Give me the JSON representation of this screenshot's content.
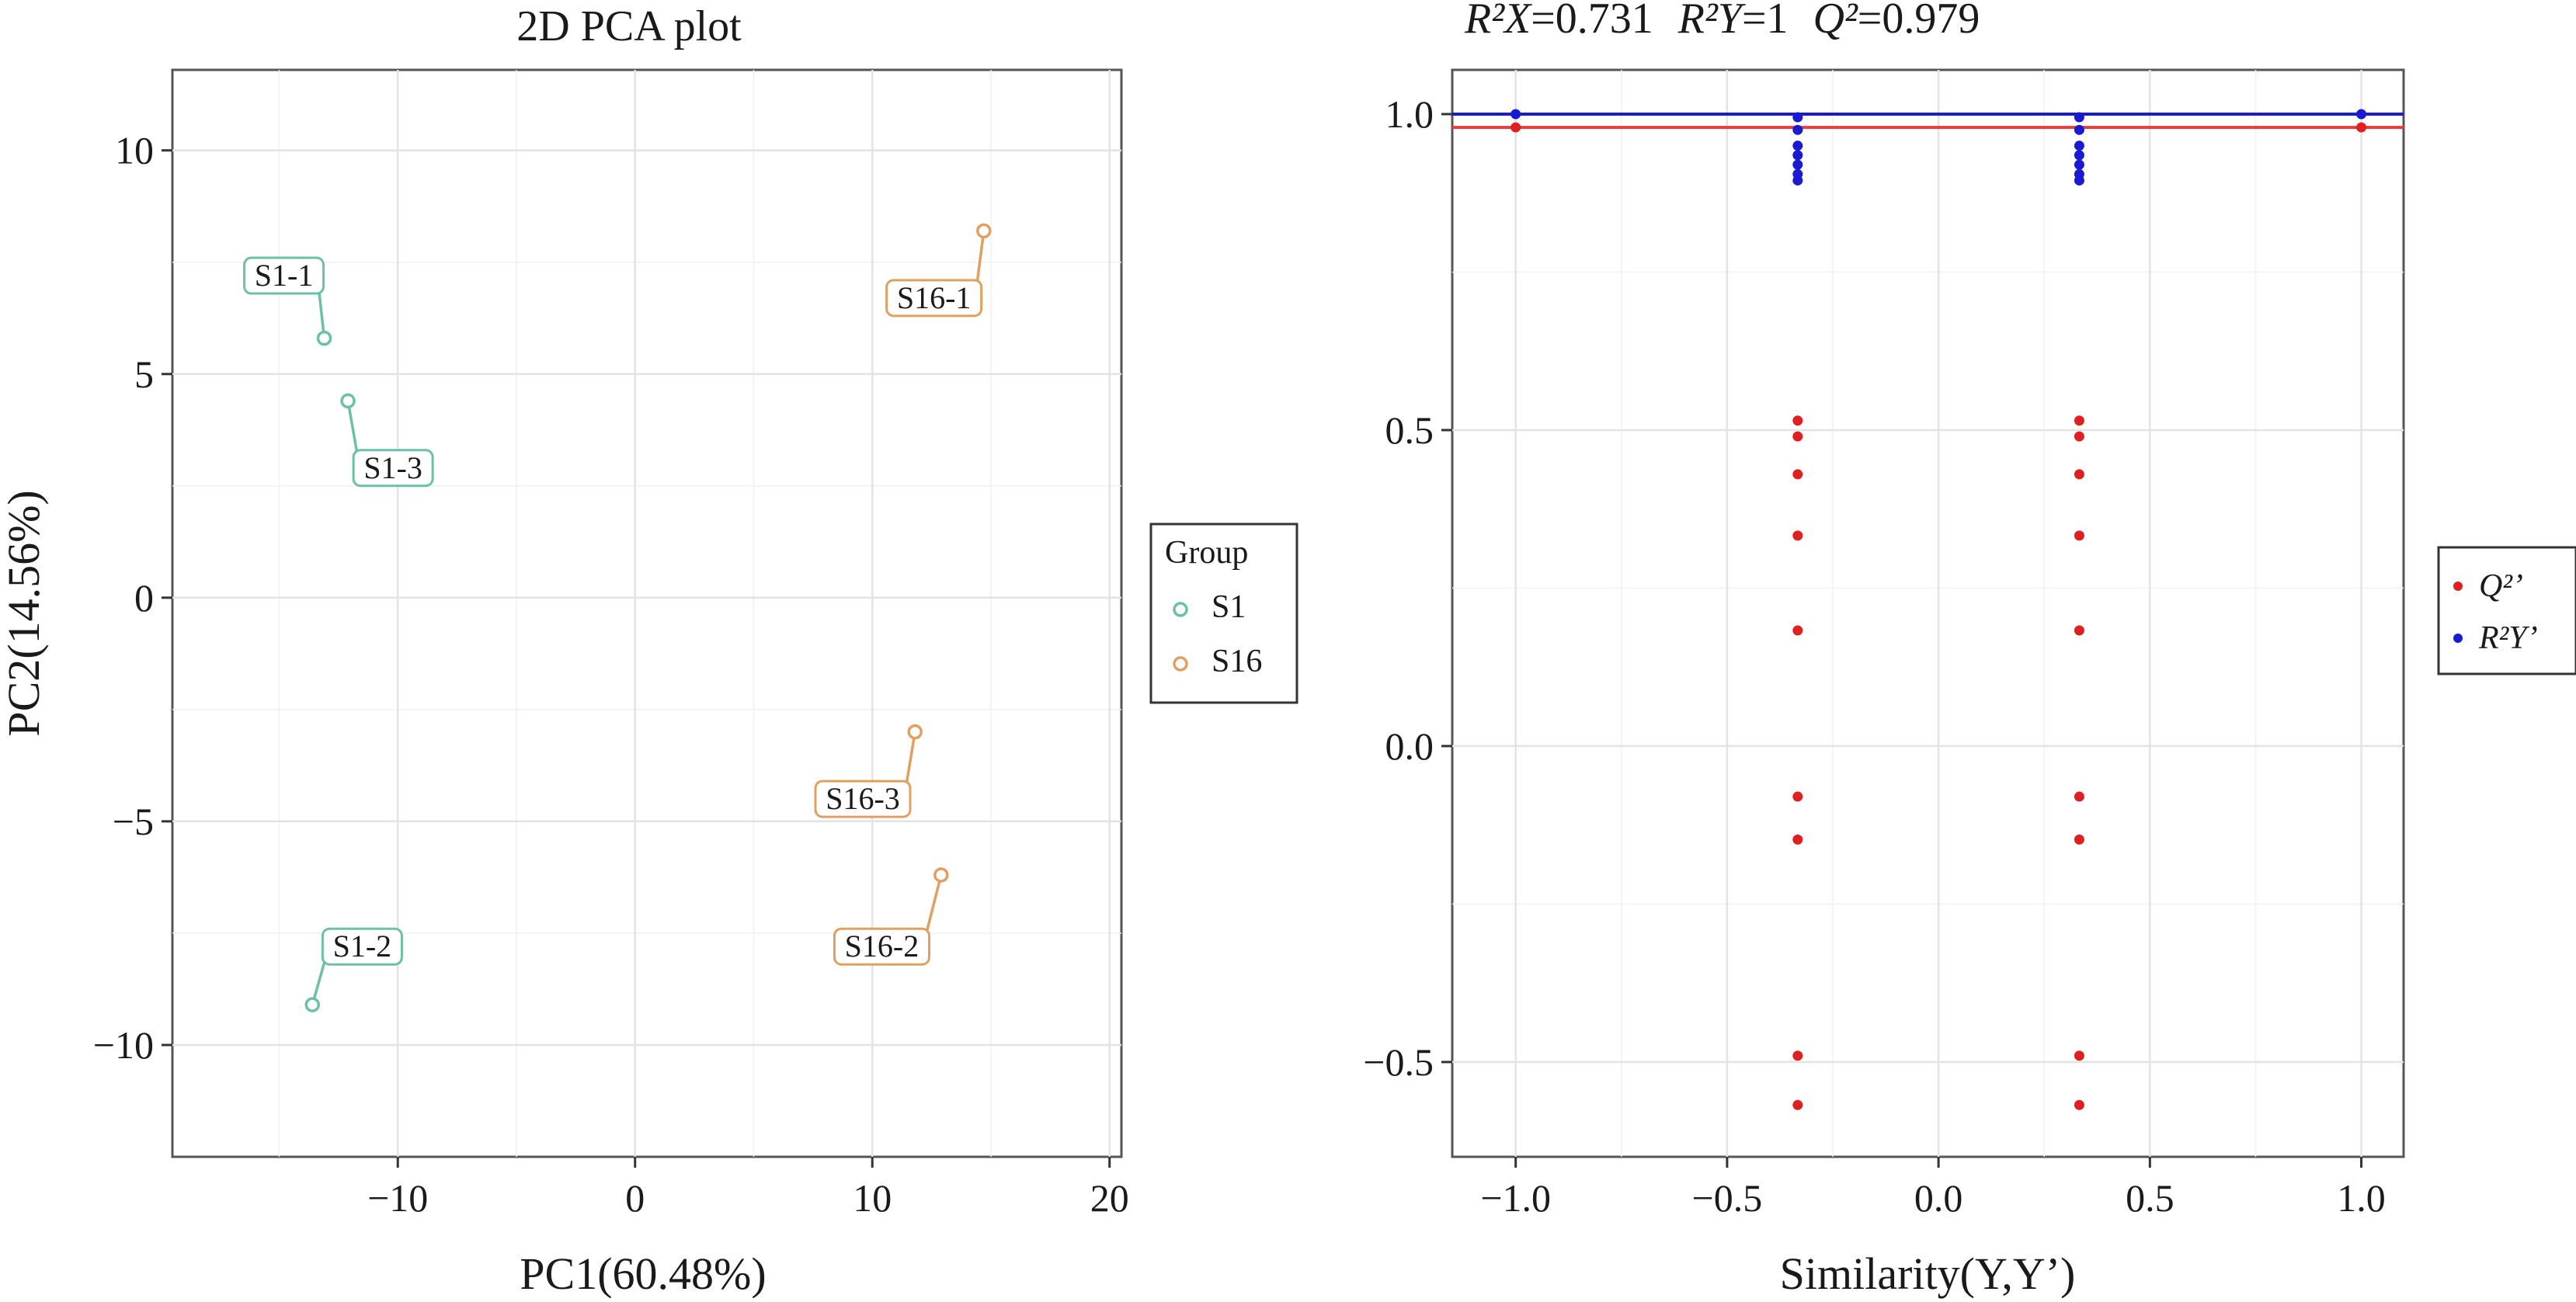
{
  "chart_data": [
    {
      "type": "scatter",
      "title": "2D PCA plot",
      "xlabel": "PC1(60.48%)",
      "ylabel": "PC2(14.56%)",
      "xlim": [
        -19.5,
        20.5
      ],
      "ylim": [
        -12.5,
        11.8
      ],
      "xticks": [
        -10,
        0,
        10,
        20
      ],
      "yticks": [
        -10,
        -5,
        0,
        5,
        10
      ],
      "xtick_labels": [
        "−10",
        "0",
        "10",
        "20"
      ],
      "ytick_labels": [
        "−10",
        "−5",
        "0",
        "5",
        "10"
      ],
      "grid": true,
      "legend": {
        "title": "Group",
        "placement": "right",
        "entries": [
          {
            "name": "S1",
            "color": "#6dc0a8"
          },
          {
            "name": "S16",
            "color": "#e0a060"
          }
        ]
      },
      "series": [
        {
          "name": "S1",
          "color": "#6dc0a8",
          "points": [
            {
              "label": "S1-1",
              "x": -13.1,
              "y": 5.8,
              "label_x": -14.8,
              "label_y": 7.2
            },
            {
              "label": "S1-2",
              "x": -13.6,
              "y": -9.1,
              "label_x": -11.5,
              "label_y": -7.8
            },
            {
              "label": "S1-3",
              "x": -12.1,
              "y": 4.4,
              "label_x": -10.2,
              "label_y": 2.9
            }
          ]
        },
        {
          "name": "S16",
          "color": "#e0a060",
          "points": [
            {
              "label": "S16-1",
              "x": 14.7,
              "y": 8.2,
              "label_x": 12.6,
              "label_y": 6.7
            },
            {
              "label": "S16-2",
              "x": 12.9,
              "y": -6.2,
              "label_x": 10.4,
              "label_y": -7.8
            },
            {
              "label": "S16-3",
              "x": 11.8,
              "y": -3.0,
              "label_x": 9.6,
              "label_y": -4.5
            }
          ]
        }
      ]
    },
    {
      "type": "scatter",
      "title": "",
      "xlabel": "Similarity(Y,Y’)",
      "ylabel": "",
      "xlim": [
        -1.15,
        1.1
      ],
      "ylim": [
        -0.65,
        1.07
      ],
      "xticks": [
        -1.0,
        -0.5,
        0.0,
        0.5,
        1.0
      ],
      "yticks": [
        -0.5,
        0.0,
        0.5,
        1.0
      ],
      "xtick_labels": [
        "−1.0",
        "−0.5",
        "0.0",
        "0.5",
        "1.0"
      ],
      "ytick_labels": [
        "−0.5",
        "0.0",
        "0.5",
        "1.0"
      ],
      "grid": true,
      "annotation": {
        "r2x_label": "R²X",
        "r2x_value": "=0.731",
        "r2y_label": "R²Y",
        "r2y_value": "=1",
        "q2_label": "Q²",
        "q2_value": "=0.979"
      },
      "reference_lines": [
        {
          "name": "R2Y",
          "y": 1.0,
          "color": "#1a1ad0"
        },
        {
          "name": "Q2",
          "y": 0.979,
          "color": "#e04040"
        }
      ],
      "legend": {
        "placement": "right",
        "entries": [
          {
            "name": "Q²’",
            "color": "#e02020"
          },
          {
            "name": "R²Y’",
            "color": "#1a1ad0"
          }
        ]
      },
      "series": [
        {
          "name": "Q2'",
          "color": "#e02020",
          "points": [
            {
              "x": -1.0,
              "y": 0.979
            },
            {
              "x": -0.333,
              "y": 0.515
            },
            {
              "x": -0.333,
              "y": 0.49
            },
            {
              "x": -0.333,
              "y": 0.43
            },
            {
              "x": -0.333,
              "y": 0.333
            },
            {
              "x": -0.333,
              "y": 0.183
            },
            {
              "x": -0.333,
              "y": -0.08
            },
            {
              "x": -0.333,
              "y": -0.148
            },
            {
              "x": -0.333,
              "y": -0.49
            },
            {
              "x": -0.333,
              "y": -0.568
            },
            {
              "x": 0.333,
              "y": 0.515
            },
            {
              "x": 0.333,
              "y": 0.49
            },
            {
              "x": 0.333,
              "y": 0.43
            },
            {
              "x": 0.333,
              "y": 0.333
            },
            {
              "x": 0.333,
              "y": 0.183
            },
            {
              "x": 0.333,
              "y": -0.08
            },
            {
              "x": 0.333,
              "y": -0.148
            },
            {
              "x": 0.333,
              "y": -0.49
            },
            {
              "x": 0.333,
              "y": -0.568
            },
            {
              "x": 1.0,
              "y": 0.979
            }
          ]
        },
        {
          "name": "R2Y'",
          "color": "#1a1ad0",
          "points": [
            {
              "x": -1.0,
              "y": 1.0
            },
            {
              "x": -0.333,
              "y": 0.995
            },
            {
              "x": -0.333,
              "y": 0.975
            },
            {
              "x": -0.333,
              "y": 0.95
            },
            {
              "x": -0.333,
              "y": 0.935
            },
            {
              "x": -0.333,
              "y": 0.92
            },
            {
              "x": -0.333,
              "y": 0.905
            },
            {
              "x": -0.333,
              "y": 0.895
            },
            {
              "x": 0.333,
              "y": 0.995
            },
            {
              "x": 0.333,
              "y": 0.975
            },
            {
              "x": 0.333,
              "y": 0.95
            },
            {
              "x": 0.333,
              "y": 0.935
            },
            {
              "x": 0.333,
              "y": 0.92
            },
            {
              "x": 0.333,
              "y": 0.905
            },
            {
              "x": 0.333,
              "y": 0.895
            },
            {
              "x": 1.0,
              "y": 1.0
            }
          ]
        }
      ]
    }
  ]
}
